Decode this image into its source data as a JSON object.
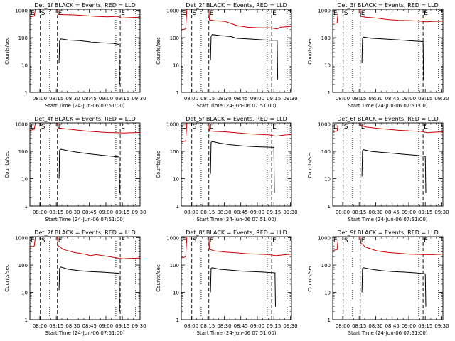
{
  "page": {
    "background": "#ffffff",
    "axis_color": "#000000",
    "events_color": "#000000",
    "lld_color": "#cc0000"
  },
  "common": {
    "xlabel": "Start Time (24-Jun-06 07:51:00)",
    "ylabel": "Counts/sec",
    "x_tick_labels": [
      "08:00",
      "08:15",
      "08:30",
      "08:45",
      "09:00",
      "09:15",
      "09:30"
    ],
    "x_tick_minutes": [
      9,
      24,
      39,
      54,
      69,
      84,
      99
    ],
    "y_tick_labels": [
      "1",
      "10",
      "100",
      "1000"
    ],
    "y_tick_values": [
      1,
      10,
      100,
      1000
    ],
    "xlim_minutes": [
      0,
      100
    ],
    "ylim": [
      1,
      1100
    ],
    "y_scale": "log",
    "grid": false,
    "markers": [
      {
        "label": "E",
        "minute": 0,
        "style": "none"
      },
      {
        "label": "S",
        "minute": 9.5,
        "style": "dashed"
      },
      {
        "label": "",
        "minute": 18,
        "style": "dotted"
      },
      {
        "label": "E",
        "minute": 25,
        "style": "dashed"
      },
      {
        "label": "",
        "minute": 78,
        "style": "dotted"
      },
      {
        "label": "E",
        "minute": 82,
        "style": "dashed"
      },
      {
        "label": "",
        "minute": 96,
        "style": "dotted"
      }
    ]
  },
  "chart_data": [
    {
      "type": "line",
      "title": "Det_1f BLACK = Events, RED = LLD",
      "series": [
        {
          "name": "Events",
          "color": "#000000",
          "points": [
            [
              26.5,
              12
            ],
            [
              27,
              75
            ],
            [
              28,
              90
            ],
            [
              35,
              82
            ],
            [
              45,
              78
            ],
            [
              55,
              70
            ],
            [
              65,
              65
            ],
            [
              75,
              62
            ],
            [
              80,
              58
            ],
            [
              81,
              55
            ],
            [
              81.5,
              2
            ]
          ]
        },
        {
          "name": "LLD",
          "color": "#cc0000",
          "points": [
            [
              0,
              570
            ],
            [
              4,
              620
            ],
            [
              5,
              1100
            ],
            [
              9,
              1100
            ],
            [
              10,
              1100
            ],
            [
              25,
              1100
            ],
            [
              25.5,
              720
            ],
            [
              30,
              700
            ],
            [
              40,
              680
            ],
            [
              50,
              640
            ],
            [
              60,
              600
            ],
            [
              70,
              580
            ],
            [
              80,
              600
            ],
            [
              83,
              520
            ],
            [
              90,
              540
            ],
            [
              100,
              560
            ]
          ]
        }
      ]
    },
    {
      "type": "line",
      "title": "Det_2f BLACK = Events, RED = LLD",
      "series": [
        {
          "name": "Events",
          "color": "#000000",
          "points": [
            [
              26.5,
              15
            ],
            [
              27,
              110
            ],
            [
              28,
              130
            ],
            [
              35,
              120
            ],
            [
              45,
              110
            ],
            [
              50,
              95
            ],
            [
              60,
              90
            ],
            [
              70,
              85
            ],
            [
              80,
              80
            ],
            [
              87,
              80
            ],
            [
              87.5,
              3
            ]
          ]
        },
        {
          "name": "LLD",
          "color": "#cc0000",
          "points": [
            [
              0,
              190
            ],
            [
              4,
              210
            ],
            [
              5,
              1100
            ],
            [
              9,
              1100
            ],
            [
              25,
              1100
            ],
            [
              25.5,
              450
            ],
            [
              30,
              420
            ],
            [
              40,
              390
            ],
            [
              50,
              280
            ],
            [
              60,
              240
            ],
            [
              70,
              230
            ],
            [
              80,
              230
            ],
            [
              87,
              210
            ],
            [
              90,
              240
            ],
            [
              100,
              260
            ]
          ]
        }
      ]
    },
    {
      "type": "line",
      "title": "Det_3f BLACK = Events, RED = LLD",
      "series": [
        {
          "name": "Events",
          "color": "#000000",
          "points": [
            [
              26.5,
              12
            ],
            [
              27,
              95
            ],
            [
              28,
              105
            ],
            [
              35,
              95
            ],
            [
              45,
              90
            ],
            [
              55,
              85
            ],
            [
              65,
              80
            ],
            [
              75,
              75
            ],
            [
              82,
              72
            ],
            [
              82.5,
              3
            ]
          ]
        },
        {
          "name": "LLD",
          "color": "#cc0000",
          "points": [
            [
              0,
              330
            ],
            [
              4,
              350
            ],
            [
              5,
              1100
            ],
            [
              9,
              1100
            ],
            [
              25,
              1100
            ],
            [
              25.5,
              600
            ],
            [
              30,
              560
            ],
            [
              40,
              520
            ],
            [
              50,
              460
            ],
            [
              60,
              430
            ],
            [
              70,
              420
            ],
            [
              80,
              400
            ],
            [
              85,
              380
            ],
            [
              90,
              390
            ],
            [
              100,
              400
            ]
          ]
        }
      ]
    },
    {
      "type": "line",
      "title": "Det_4f BLACK = Events, RED = LLD",
      "series": [
        {
          "name": "Events",
          "color": "#000000",
          "points": [
            [
              26.5,
              10
            ],
            [
              27,
              110
            ],
            [
              28,
              120
            ],
            [
              35,
              105
            ],
            [
              45,
              90
            ],
            [
              55,
              80
            ],
            [
              65,
              72
            ],
            [
              75,
              66
            ],
            [
              81,
              62
            ],
            [
              81.5,
              3
            ]
          ]
        },
        {
          "name": "LLD",
          "color": "#cc0000",
          "points": [
            [
              0,
              580
            ],
            [
              4,
              640
            ],
            [
              5,
              1100
            ],
            [
              9,
              1100
            ],
            [
              25,
              1100
            ],
            [
              25.5,
              720
            ],
            [
              30,
              680
            ],
            [
              40,
              620
            ],
            [
              50,
              560
            ],
            [
              60,
              520
            ],
            [
              70,
              490
            ],
            [
              80,
              480
            ],
            [
              86,
              470
            ],
            [
              90,
              480
            ],
            [
              100,
              490
            ]
          ]
        }
      ]
    },
    {
      "type": "line",
      "title": "Det_5f BLACK = Events, RED = LLD",
      "series": [
        {
          "name": "Events",
          "color": "#000000",
          "points": [
            [
              26.5,
              15
            ],
            [
              27,
              210
            ],
            [
              28,
              230
            ],
            [
              35,
              200
            ],
            [
              45,
              175
            ],
            [
              55,
              160
            ],
            [
              65,
              150
            ],
            [
              75,
              145
            ],
            [
              84,
              140
            ],
            [
              84.5,
              3
            ]
          ]
        },
        {
          "name": "LLD",
          "color": "#cc0000",
          "points": [
            [
              0,
              220
            ],
            [
              4,
              240
            ],
            [
              5,
              1100
            ],
            [
              9,
              1100
            ],
            [
              25,
              1100
            ],
            [
              25.5,
              560
            ],
            [
              30,
              540
            ],
            [
              40,
              520
            ],
            [
              50,
              480
            ],
            [
              60,
              440
            ],
            [
              70,
              420
            ],
            [
              80,
              400
            ],
            [
              86,
              360
            ],
            [
              90,
              380
            ],
            [
              100,
              420
            ]
          ]
        }
      ]
    },
    {
      "type": "line",
      "title": "Det_6f BLACK = Events, RED = LLD",
      "series": [
        {
          "name": "Events",
          "color": "#000000",
          "points": [
            [
              26.5,
              12
            ],
            [
              27,
              105
            ],
            [
              28,
              115
            ],
            [
              35,
              100
            ],
            [
              45,
              92
            ],
            [
              55,
              85
            ],
            [
              65,
              78
            ],
            [
              75,
              72
            ],
            [
              84,
              65
            ],
            [
              84.5,
              3
            ]
          ]
        },
        {
          "name": "LLD",
          "color": "#cc0000",
          "points": [
            [
              0,
              520
            ],
            [
              4,
              560
            ],
            [
              5,
              1100
            ],
            [
              9,
              1100
            ],
            [
              25,
              1100
            ],
            [
              25.5,
              900
            ],
            [
              30,
              780
            ],
            [
              40,
              700
            ],
            [
              50,
              640
            ],
            [
              60,
              590
            ],
            [
              70,
              560
            ],
            [
              80,
              540
            ],
            [
              86,
              480
            ],
            [
              90,
              500
            ],
            [
              100,
              520
            ]
          ]
        }
      ]
    },
    {
      "type": "line",
      "title": "Det_7f BLACK = Events, RED = LLD",
      "series": [
        {
          "name": "Events",
          "color": "#000000",
          "points": [
            [
              26.5,
              12
            ],
            [
              27,
              75
            ],
            [
              28,
              85
            ],
            [
              35,
              70
            ],
            [
              45,
              62
            ],
            [
              55,
              58
            ],
            [
              65,
              55
            ],
            [
              75,
              52
            ],
            [
              81,
              50
            ],
            [
              81.5,
              2
            ]
          ]
        },
        {
          "name": "LLD",
          "color": "#cc0000",
          "points": [
            [
              0,
              460
            ],
            [
              4,
              500
            ],
            [
              5,
              1100
            ],
            [
              9,
              1100
            ],
            [
              25,
              1100
            ],
            [
              25.5,
              520
            ],
            [
              30,
              380
            ],
            [
              40,
              290
            ],
            [
              50,
              250
            ],
            [
              55,
              220
            ],
            [
              60,
              240
            ],
            [
              70,
              210
            ],
            [
              80,
              180
            ],
            [
              84,
              170
            ],
            [
              90,
              175
            ],
            [
              100,
              180
            ]
          ]
        }
      ]
    },
    {
      "type": "line",
      "title": "Det_8f BLACK = Events, RED = LLD",
      "series": [
        {
          "name": "Events",
          "color": "#000000",
          "points": [
            [
              26.5,
              10
            ],
            [
              27,
              75
            ],
            [
              28,
              80
            ],
            [
              35,
              70
            ],
            [
              45,
              65
            ],
            [
              55,
              60
            ],
            [
              65,
              58
            ],
            [
              75,
              55
            ],
            [
              85,
              52
            ],
            [
              85.5,
              3
            ]
          ]
        },
        {
          "name": "LLD",
          "color": "#cc0000",
          "points": [
            [
              0,
              180
            ],
            [
              4,
              200
            ],
            [
              5,
              1100
            ],
            [
              9,
              1100
            ],
            [
              25,
              1100
            ],
            [
              25.5,
              380
            ],
            [
              30,
              330
            ],
            [
              40,
              300
            ],
            [
              50,
              280
            ],
            [
              60,
              260
            ],
            [
              70,
              250
            ],
            [
              80,
              240
            ],
            [
              86,
              220
            ],
            [
              90,
              230
            ],
            [
              100,
              250
            ]
          ]
        }
      ]
    },
    {
      "type": "line",
      "title": "Det_9f BLACK = Events, RED = LLD",
      "series": [
        {
          "name": "Events",
          "color": "#000000",
          "points": [
            [
              26.5,
              10
            ],
            [
              27,
              75
            ],
            [
              28,
              80
            ],
            [
              35,
              70
            ],
            [
              45,
              62
            ],
            [
              55,
              58
            ],
            [
              65,
              55
            ],
            [
              75,
              52
            ],
            [
              84,
              48
            ],
            [
              84.5,
              3
            ]
          ]
        },
        {
          "name": "LLD",
          "color": "#cc0000",
          "points": [
            [
              0,
              340
            ],
            [
              4,
              370
            ],
            [
              5,
              1100
            ],
            [
              9,
              1100
            ],
            [
              25,
              1100
            ],
            [
              25.5,
              650
            ],
            [
              30,
              450
            ],
            [
              40,
              330
            ],
            [
              50,
              290
            ],
            [
              60,
              270
            ],
            [
              70,
              250
            ],
            [
              80,
              245
            ],
            [
              86,
              240
            ],
            [
              90,
              240
            ],
            [
              100,
              250
            ]
          ]
        }
      ]
    }
  ]
}
